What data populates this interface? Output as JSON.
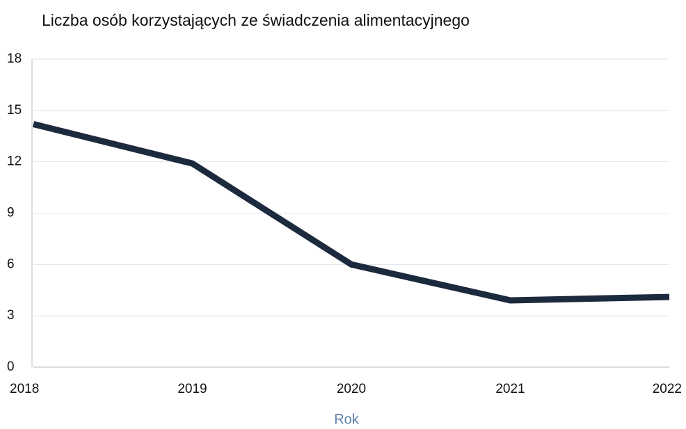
{
  "chart_data": {
    "type": "line",
    "title": "Liczba osób korzystających ze świadczenia alimentacyjnego",
    "x_label": "Rok",
    "x": [
      2018,
      2019,
      2020,
      2021,
      2022
    ],
    "series": [
      {
        "name": "Liczba osób",
        "color": "#1c2a3e",
        "values": [
          14.2,
          11.9,
          6.0,
          3.9,
          4.1
        ]
      }
    ],
    "xlim": [
      2018,
      2022
    ],
    "xticks": [
      2018,
      2019,
      2020,
      2021,
      2022
    ],
    "ylim": [
      0,
      18
    ],
    "yticks": [
      0,
      3,
      6,
      9,
      12,
      15,
      18
    ],
    "grid": true
  }
}
